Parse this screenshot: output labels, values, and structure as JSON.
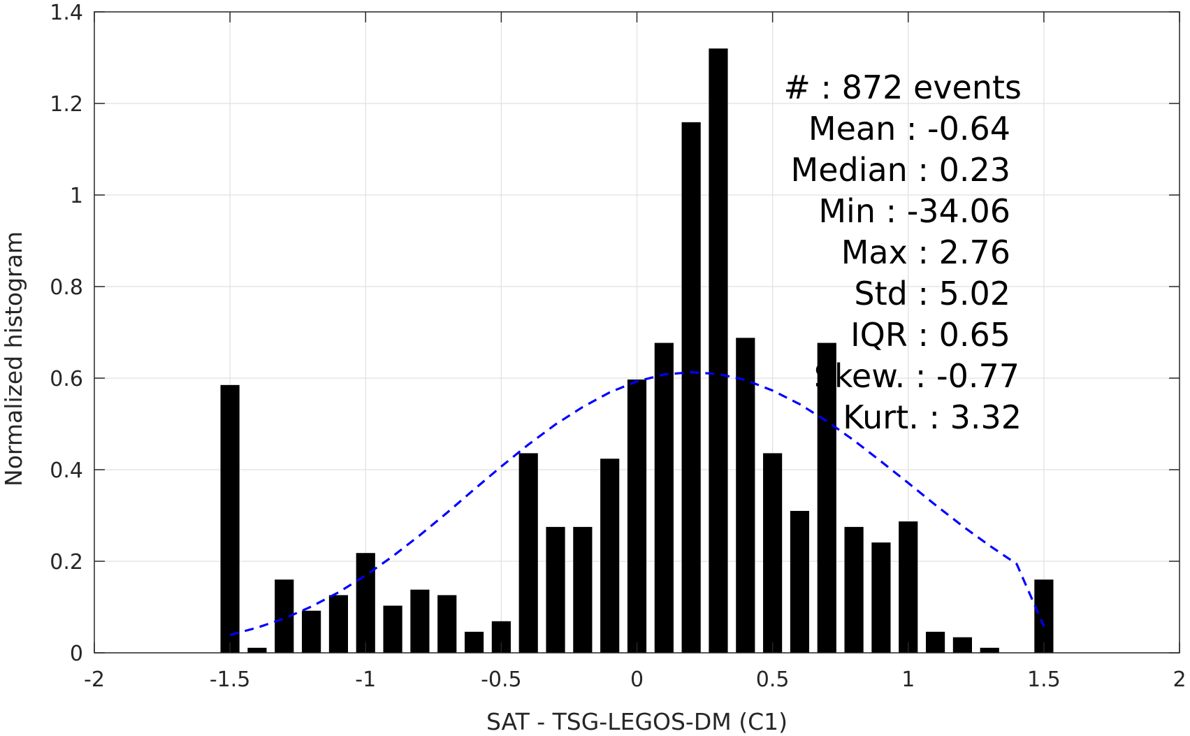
{
  "chart_data": {
    "type": "bar",
    "xlabel": "SAT - TSG-LEGOS-DM (C1)",
    "ylabel": "Normalized histogram",
    "xlim": [
      -2,
      2
    ],
    "ylim": [
      0,
      1.4
    ],
    "xticks": [
      -2,
      -1.5,
      -1,
      -0.5,
      0,
      0.5,
      1,
      1.5,
      2
    ],
    "xtick_labels": [
      "-2",
      "-1.5",
      "-1",
      "-0.5",
      "0",
      "0.5",
      "1",
      "1.5",
      "2"
    ],
    "yticks": [
      0,
      0.2,
      0.4,
      0.6,
      0.8,
      1,
      1.2,
      1.4
    ],
    "ytick_labels": [
      "0",
      "0.2",
      "0.4",
      "0.6",
      "0.8",
      "1",
      "1.2",
      "1.4"
    ],
    "grid": true,
    "bar_width": 0.07,
    "bar_color": "#000000",
    "x": [
      -1.5,
      -1.4,
      -1.3,
      -1.2,
      -1.1,
      -1.0,
      -0.9,
      -0.8,
      -0.7,
      -0.6,
      -0.5,
      -0.4,
      -0.3,
      -0.2,
      -0.1,
      0.0,
      0.1,
      0.2,
      0.3,
      0.4,
      0.5,
      0.6,
      0.7,
      0.8,
      0.9,
      1.0,
      1.1,
      1.2,
      1.3,
      1.4,
      1.5
    ],
    "values": [
      0.585,
      0.011,
      0.16,
      0.092,
      0.126,
      0.218,
      0.103,
      0.138,
      0.126,
      0.046,
      0.069,
      0.436,
      0.275,
      0.275,
      0.424,
      0.597,
      0.677,
      1.159,
      1.32,
      0.688,
      0.436,
      0.31,
      0.677,
      0.275,
      0.241,
      0.287,
      0.046,
      0.034,
      0.011,
      0.0,
      0.16
    ],
    "fit_curve": {
      "style": "dashed",
      "color": "#0000ff",
      "x": [
        -1.5,
        -1.4,
        -1.3,
        -1.2,
        -1.1,
        -1.0,
        -0.9,
        -0.8,
        -0.7,
        -0.6,
        -0.5,
        -0.4,
        -0.3,
        -0.2,
        -0.1,
        0.0,
        0.1,
        0.2,
        0.3,
        0.4,
        0.5,
        0.6,
        0.7,
        0.8,
        0.9,
        1.0,
        1.1,
        1.2,
        1.3,
        1.4,
        1.5
      ],
      "y": [
        0.039,
        0.055,
        0.075,
        0.101,
        0.132,
        0.169,
        0.211,
        0.257,
        0.306,
        0.357,
        0.407,
        0.455,
        0.499,
        0.537,
        0.569,
        0.593,
        0.608,
        0.613,
        0.609,
        0.596,
        0.573,
        0.543,
        0.506,
        0.464,
        0.418,
        0.371,
        0.323,
        0.277,
        0.234,
        0.194,
        0.058
      ]
    },
    "annotations": [
      "#  : 872 events",
      "Mean : -0.64",
      "Median : 0.23",
      "Min : -34.06",
      "Max : 2.76",
      "Std : 5.02",
      "IQR : 0.65",
      "Skew. : -0.77",
      "Kurt. : 3.32"
    ]
  }
}
